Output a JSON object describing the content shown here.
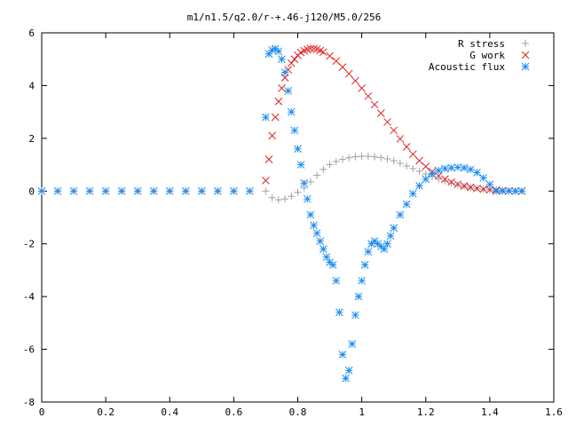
{
  "chart_data": {
    "type": "scatter",
    "title": "m1/n1.5/q2.0/r-+.46-j120/M5.0/256",
    "xlabel": "",
    "ylabel": "",
    "xlim": [
      0,
      1.6
    ],
    "ylim": [
      -8,
      6
    ],
    "xticks": [
      0,
      0.2,
      0.4,
      0.6,
      0.8,
      1,
      1.2,
      1.4,
      1.6
    ],
    "yticks": [
      -8,
      -6,
      -4,
      -2,
      0,
      2,
      4,
      6
    ],
    "xtick_labels": [
      "0",
      "0.2",
      "0.4",
      "0.6",
      "0.8",
      "1",
      "1.2",
      "1.4",
      "1.6"
    ],
    "ytick_labels": [
      "-8",
      "-6",
      "-4",
      "-2",
      "0",
      "2",
      "4",
      "6"
    ],
    "grid": false,
    "legend_position": "top-right",
    "series": [
      {
        "name": "R stress",
        "marker": "plus",
        "color": "#a0a0a0",
        "x": [
          0.0,
          0.05,
          0.1,
          0.15,
          0.2,
          0.25,
          0.3,
          0.35,
          0.4,
          0.45,
          0.5,
          0.55,
          0.6,
          0.65,
          0.7,
          0.72,
          0.74,
          0.76,
          0.78,
          0.8,
          0.82,
          0.84,
          0.86,
          0.88,
          0.9,
          0.92,
          0.94,
          0.96,
          0.98,
          1.0,
          1.02,
          1.04,
          1.06,
          1.08,
          1.1,
          1.12,
          1.14,
          1.16,
          1.18,
          1.2,
          1.22,
          1.24,
          1.26,
          1.28,
          1.3,
          1.32,
          1.34,
          1.36,
          1.38,
          1.4,
          1.42,
          1.44,
          1.46,
          1.48,
          1.5
        ],
        "y": [
          0,
          0,
          0,
          0,
          0,
          0,
          0,
          0,
          0,
          0,
          0,
          0,
          0,
          0,
          0,
          -0.25,
          -0.33,
          -0.3,
          -0.2,
          -0.05,
          0.12,
          0.35,
          0.6,
          0.82,
          1.0,
          1.12,
          1.2,
          1.26,
          1.3,
          1.32,
          1.32,
          1.3,
          1.27,
          1.22,
          1.15,
          1.05,
          0.95,
          0.85,
          0.75,
          0.65,
          0.55,
          0.46,
          0.38,
          0.3,
          0.24,
          0.18,
          0.14,
          0.1,
          0.07,
          0.05,
          0.03,
          0.02,
          0.01,
          0.0,
          0.0
        ]
      },
      {
        "name": "G work",
        "marker": "cross",
        "color": "#e02020",
        "x": [
          0.7,
          0.71,
          0.72,
          0.73,
          0.74,
          0.75,
          0.76,
          0.77,
          0.78,
          0.79,
          0.8,
          0.81,
          0.82,
          0.83,
          0.84,
          0.85,
          0.86,
          0.87,
          0.88,
          0.9,
          0.92,
          0.94,
          0.96,
          0.98,
          1.0,
          1.02,
          1.04,
          1.06,
          1.08,
          1.1,
          1.12,
          1.14,
          1.16,
          1.18,
          1.2,
          1.22,
          1.24,
          1.26,
          1.28,
          1.3,
          1.32,
          1.34,
          1.36,
          1.38,
          1.4,
          1.42,
          1.44,
          1.46,
          1.48,
          1.5
        ],
        "y": [
          0.4,
          1.2,
          2.1,
          2.8,
          3.4,
          3.9,
          4.3,
          4.6,
          4.85,
          5.0,
          5.15,
          5.25,
          5.32,
          5.37,
          5.4,
          5.4,
          5.38,
          5.33,
          5.27,
          5.12,
          4.93,
          4.7,
          4.45,
          4.18,
          3.9,
          3.6,
          3.28,
          2.95,
          2.62,
          2.3,
          1.98,
          1.68,
          1.4,
          1.15,
          0.93,
          0.74,
          0.58,
          0.45,
          0.34,
          0.26,
          0.19,
          0.14,
          0.1,
          0.07,
          0.05,
          0.03,
          0.02,
          0.01,
          0.0,
          0.0
        ]
      },
      {
        "name": "Acoustic flux",
        "marker": "star",
        "color": "#1c8cf0",
        "x": [
          0.0,
          0.05,
          0.1,
          0.15,
          0.2,
          0.25,
          0.3,
          0.35,
          0.4,
          0.45,
          0.5,
          0.55,
          0.6,
          0.65,
          0.7,
          0.71,
          0.72,
          0.73,
          0.74,
          0.75,
          0.76,
          0.77,
          0.78,
          0.79,
          0.8,
          0.81,
          0.82,
          0.83,
          0.84,
          0.85,
          0.86,
          0.87,
          0.88,
          0.89,
          0.9,
          0.91,
          0.92,
          0.93,
          0.94,
          0.95,
          0.96,
          0.97,
          0.98,
          0.99,
          1.0,
          1.01,
          1.02,
          1.03,
          1.04,
          1.05,
          1.06,
          1.07,
          1.08,
          1.09,
          1.1,
          1.12,
          1.14,
          1.16,
          1.18,
          1.2,
          1.22,
          1.24,
          1.26,
          1.28,
          1.3,
          1.32,
          1.34,
          1.36,
          1.38,
          1.4,
          1.42,
          1.44,
          1.46,
          1.48,
          1.5
        ],
        "y": [
          0,
          0,
          0,
          0,
          0,
          0,
          0,
          0,
          0,
          0,
          0,
          0,
          0,
          0,
          2.8,
          5.2,
          5.35,
          5.4,
          5.3,
          5.0,
          4.5,
          3.8,
          3.0,
          2.3,
          1.6,
          1.0,
          0.3,
          -0.3,
          -0.9,
          -1.3,
          -1.6,
          -1.9,
          -2.2,
          -2.5,
          -2.7,
          -2.8,
          -3.4,
          -4.6,
          -6.2,
          -7.1,
          -6.8,
          -5.8,
          -4.7,
          -4.0,
          -3.4,
          -2.8,
          -2.3,
          -2.0,
          -1.9,
          -2.0,
          -2.1,
          -2.2,
          -2.0,
          -1.7,
          -1.4,
          -0.9,
          -0.5,
          -0.1,
          0.2,
          0.45,
          0.65,
          0.78,
          0.85,
          0.88,
          0.9,
          0.88,
          0.82,
          0.7,
          0.5,
          0.25,
          0.0,
          0.0,
          0.0,
          0.0,
          0.0
        ]
      }
    ]
  }
}
